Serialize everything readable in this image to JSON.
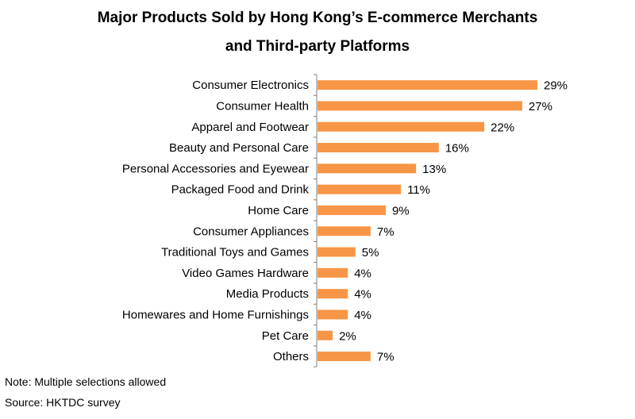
{
  "title_line1": "Major Products Sold by Hong Kong’s E-commerce Merchants",
  "title_line2": "and Third-party Platforms",
  "note": "Note: Multiple selections allowed",
  "source": "Source: HKTDC survey",
  "colors": {
    "bar": "#F79646",
    "axis": "#808080"
  },
  "chart_data": {
    "type": "bar",
    "orientation": "horizontal",
    "title": "Major Products Sold by Hong Kong’s E-commerce Merchants and Third-party Platforms",
    "categories": [
      "Consumer Electronics",
      "Consumer Health",
      "Apparel and Footwear",
      "Beauty and Personal Care",
      "Personal Accessories and Eyewear",
      "Packaged Food and Drink",
      "Home Care",
      "Consumer Appliances",
      "Traditional Toys and Games",
      "Video Games Hardware",
      "Media Products",
      "Homewares and Home Furnishings",
      "Pet Care",
      "Others"
    ],
    "values": [
      29,
      27,
      22,
      16,
      13,
      11,
      9,
      7,
      5,
      4,
      4,
      4,
      2,
      7
    ],
    "value_labels": [
      "29%",
      "27%",
      "22%",
      "16%",
      "13%",
      "11%",
      "9%",
      "7%",
      "5%",
      "4%",
      "4%",
      "4%",
      "2%",
      "7%"
    ],
    "unit": "%",
    "xlim": [
      0,
      30
    ],
    "grid": false,
    "legend": "none"
  }
}
